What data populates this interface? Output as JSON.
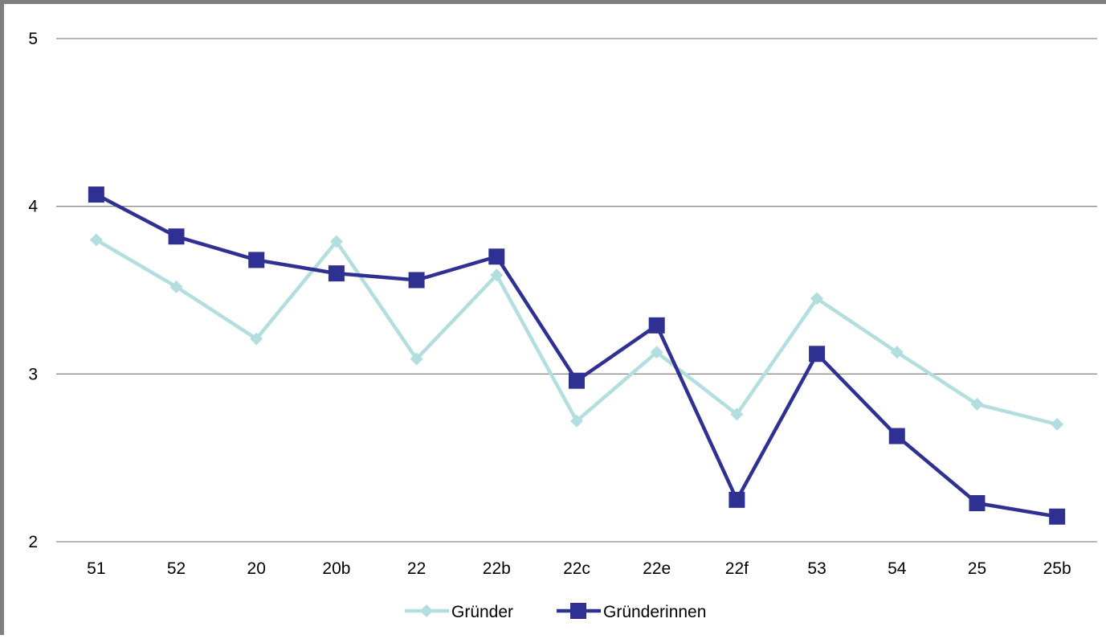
{
  "chart_data": {
    "type": "line",
    "title": "",
    "xlabel": "",
    "ylabel": "",
    "categories": [
      "51",
      "52",
      "20",
      "20b",
      "22",
      "22b",
      "22c",
      "22e",
      "22f",
      "53",
      "54",
      "25",
      "25b"
    ],
    "ylim": [
      2,
      5
    ],
    "yticks": [
      "2",
      "3",
      "4",
      "5"
    ],
    "grid": "horizontal",
    "legend_position": "bottom",
    "series": [
      {
        "name": "Gründer",
        "color": "#b3dedf",
        "marker": "diamond",
        "values": [
          3.8,
          3.52,
          3.21,
          3.79,
          3.09,
          3.59,
          2.72,
          3.13,
          2.76,
          3.45,
          3.13,
          2.82,
          2.7
        ]
      },
      {
        "name": "Gründerinnen",
        "color": "#2e3192",
        "marker": "square",
        "values": [
          4.07,
          3.82,
          3.68,
          3.6,
          3.56,
          3.7,
          2.96,
          3.29,
          2.25,
          3.12,
          2.63,
          2.23,
          2.15
        ]
      }
    ]
  }
}
